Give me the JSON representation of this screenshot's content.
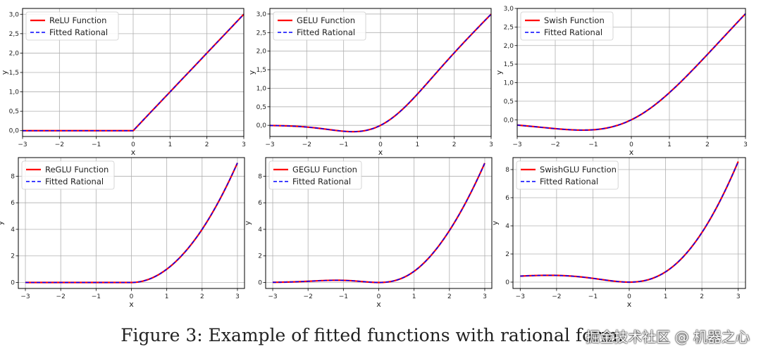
{
  "caption": "Figure 3: Example of fitted functions with rational form.",
  "watermark": "掘金技术社区 @ 机器之心",
  "colors": {
    "function": "#ff0000",
    "fitted": "#0000ff",
    "grid": "#b0b0b0",
    "axis": "#000000"
  },
  "chart_data": [
    {
      "type": "line",
      "fn": "relu",
      "title": "",
      "xlabel": "x",
      "ylabel": "y",
      "xlim": [
        -3,
        3
      ],
      "ylim": [
        -0.15,
        3.15
      ],
      "xticks": [
        -3,
        -2,
        -1,
        0,
        1,
        2,
        3
      ],
      "xtick_labels": [
        "−3",
        "−2",
        "−1",
        "0",
        "1",
        "2",
        "3"
      ],
      "yticks": [
        0,
        0.5,
        1,
        1.5,
        2,
        2.5,
        3
      ],
      "ytick_labels": [
        "0,0",
        "0,5",
        "1,0",
        "1,5",
        "2,0",
        "2,5",
        "3,0"
      ],
      "grid": true,
      "legend_position": "top-left",
      "series": [
        {
          "name": "ReLU Function",
          "style": "solid"
        },
        {
          "name": "Fitted Rational",
          "style": "dashed"
        }
      ],
      "x": [
        -3,
        -2,
        -1,
        0,
        1,
        2,
        3
      ],
      "y": [
        0,
        0,
        0,
        0,
        1,
        2,
        3
      ]
    },
    {
      "type": "line",
      "fn": "gelu",
      "title": "",
      "xlabel": "x",
      "ylabel": "y",
      "xlim": [
        -3,
        3
      ],
      "ylim": [
        -0.3,
        3.15
      ],
      "xticks": [
        -3,
        -2,
        -1,
        0,
        1,
        2,
        3
      ],
      "xtick_labels": [
        "−3",
        "−2",
        "−1",
        "0",
        "1",
        "2",
        "3"
      ],
      "yticks": [
        0,
        0.5,
        1,
        1.5,
        2,
        2.5,
        3
      ],
      "ytick_labels": [
        "0,0",
        "0,5",
        "1,0",
        "1,5",
        "2,0",
        "2,5",
        "3,0"
      ],
      "grid": true,
      "legend_position": "top-left",
      "series": [
        {
          "name": "GELU Function",
          "style": "solid"
        },
        {
          "name": "Fitted Rational",
          "style": "dashed"
        }
      ],
      "x": [
        -3,
        -2,
        -1,
        -0.75,
        0,
        1,
        2,
        3
      ],
      "y": [
        -0.004,
        -0.045,
        -0.159,
        -0.17,
        0,
        0.841,
        1.955,
        2.996
      ]
    },
    {
      "type": "line",
      "fn": "swish",
      "title": "",
      "xlabel": "x",
      "ylabel": "y",
      "xlim": [
        -3,
        3
      ],
      "ylim": [
        -0.45,
        3.0
      ],
      "xticks": [
        -3,
        -2,
        -1,
        0,
        1,
        2,
        3
      ],
      "xtick_labels": [
        "−3",
        "−2",
        "−1",
        "0",
        "1",
        "2",
        "3"
      ],
      "yticks": [
        0,
        0.5,
        1,
        1.5,
        2,
        2.5,
        3
      ],
      "ytick_labels": [
        "0,0",
        "0,5",
        "1,0",
        "1,5",
        "2,0",
        "2,5",
        "3,0"
      ],
      "grid": true,
      "legend_position": "top-left",
      "series": [
        {
          "name": "Swish Function",
          "style": "solid"
        },
        {
          "name": "Fitted Rational",
          "style": "dashed"
        }
      ],
      "x": [
        -3,
        -2,
        -1.28,
        -1,
        0,
        1,
        2,
        3
      ],
      "y": [
        -0.142,
        -0.238,
        -0.278,
        -0.269,
        0,
        0.731,
        1.762,
        2.858
      ]
    },
    {
      "type": "line",
      "fn": "reglu",
      "title": "",
      "xlabel": "x",
      "ylabel": "y",
      "xlim": [
        -3.2,
        3.2
      ],
      "ylim": [
        -0.45,
        9.4
      ],
      "xticks": [
        -3,
        -2,
        -1,
        0,
        1,
        2,
        3
      ],
      "xtick_labels": [
        "−3",
        "−2",
        "−1",
        "0",
        "1",
        "2",
        "3"
      ],
      "yticks": [
        0,
        2,
        4,
        6,
        8
      ],
      "ytick_labels": [
        "0",
        "2",
        "4",
        "6",
        "8"
      ],
      "grid": true,
      "legend_position": "top-left",
      "series": [
        {
          "name": "ReGLU Function",
          "style": "solid"
        },
        {
          "name": "Fitted Rational",
          "style": "dashed"
        }
      ],
      "x": [
        -3,
        -2,
        -1,
        0,
        1,
        2,
        3
      ],
      "y": [
        0,
        0,
        0,
        0,
        1,
        4,
        9
      ]
    },
    {
      "type": "line",
      "fn": "geglu",
      "title": "",
      "xlabel": "x",
      "ylabel": "y",
      "xlim": [
        -3.2,
        3.2
      ],
      "ylim": [
        -0.45,
        9.4
      ],
      "xticks": [
        -3,
        -2,
        -1,
        0,
        1,
        2,
        3
      ],
      "xtick_labels": [
        "−3",
        "−2",
        "−1",
        "0",
        "1",
        "2",
        "3"
      ],
      "yticks": [
        0,
        2,
        4,
        6,
        8
      ],
      "ytick_labels": [
        "0",
        "2",
        "4",
        "6",
        "8"
      ],
      "grid": true,
      "legend_position": "top-left",
      "series": [
        {
          "name": "GEGLU Function",
          "style": "solid"
        },
        {
          "name": "Fitted Rational",
          "style": "dashed"
        }
      ],
      "x": [
        -3,
        -2,
        -1,
        0,
        1,
        2,
        3
      ],
      "y": [
        0.012,
        0.091,
        0.159,
        0,
        0.841,
        3.909,
        8.988
      ]
    },
    {
      "type": "line",
      "fn": "swishglu",
      "title": "",
      "xlabel": "x",
      "ylabel": "y",
      "xlim": [
        -3.2,
        3.2
      ],
      "ylim": [
        -0.45,
        8.85
      ],
      "xticks": [
        -3,
        -2,
        -1,
        0,
        1,
        2,
        3
      ],
      "xtick_labels": [
        "−3",
        "−2",
        "−1",
        "0",
        "1",
        "2",
        "3"
      ],
      "yticks": [
        0,
        2,
        4,
        6,
        8
      ],
      "ytick_labels": [
        "0",
        "2",
        "4",
        "6",
        "8"
      ],
      "grid": true,
      "legend_position": "top-left",
      "series": [
        {
          "name": "SwishGLU Function",
          "style": "solid"
        },
        {
          "name": "Fitted Rational",
          "style": "dashed"
        }
      ],
      "x": [
        -3,
        -2,
        -1,
        0,
        1,
        2,
        3
      ],
      "y": [
        0.427,
        0.477,
        0.269,
        0,
        0.731,
        3.523,
        8.573
      ]
    }
  ]
}
